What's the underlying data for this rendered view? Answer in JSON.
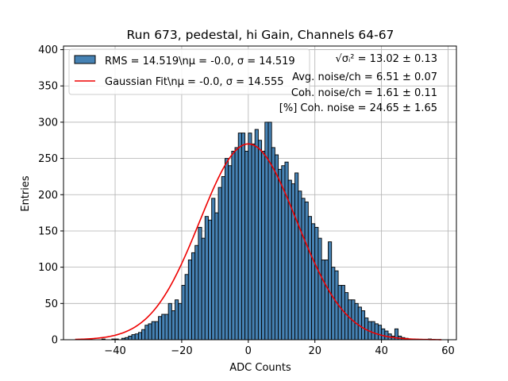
{
  "chart_data": {
    "type": "bar",
    "title": "Run 673, pedestal, hi Gain, Channels 64-67",
    "xlabel": "ADC Counts",
    "ylabel": "Entries",
    "xlim": [
      -55.5,
      62.5
    ],
    "ylim": [
      0,
      405
    ],
    "grid": true,
    "xticks": [
      -40,
      -20,
      0,
      20,
      40,
      60
    ],
    "yticks": [
      0,
      50,
      100,
      150,
      200,
      250,
      300,
      350,
      400
    ],
    "bin_start": -52,
    "bin_width": 1,
    "histogram_values": [
      0,
      0,
      0,
      0,
      0,
      0,
      0,
      0,
      1,
      0,
      0,
      1,
      1,
      0,
      2,
      3,
      5,
      7,
      8,
      10,
      14,
      20,
      22,
      25,
      25,
      32,
      35,
      35,
      50,
      40,
      55,
      50,
      75,
      90,
      110,
      120,
      130,
      155,
      140,
      170,
      165,
      195,
      175,
      210,
      225,
      250,
      240,
      260,
      265,
      285,
      285,
      260,
      285,
      270,
      290,
      275,
      260,
      300,
      300,
      265,
      255,
      235,
      240,
      245,
      220,
      215,
      230,
      205,
      195,
      190,
      170,
      160,
      155,
      140,
      110,
      110,
      135,
      100,
      95,
      75,
      75,
      65,
      55,
      55,
      50,
      45,
      40,
      30,
      25,
      25,
      22,
      20,
      15,
      12,
      8,
      5,
      15,
      5,
      3,
      2,
      1,
      1,
      0,
      0,
      0,
      0,
      1,
      0,
      0,
      0,
      0
    ],
    "fit": {
      "mu": 0,
      "sigma": 14.555,
      "amplitude": 270
    },
    "fit_range": [
      -52,
      58
    ],
    "bar_color": "#4682b4",
    "bar_edge_color": "#000000",
    "fit_color": "#ee0000",
    "legend_position": "upper-left",
    "legend": [
      {
        "label": "RMS = 14.519\\nμ = -0.0, σ = 14.519",
        "kind": "patch"
      },
      {
        "label": "Gaussian Fit\\nμ = -0.0, σ = 14.555",
        "kind": "line"
      }
    ],
    "annotations": [
      "√σᵢ² = 13.02 ± 0.13",
      "Avg. noise/ch = 6.51 ± 0.07",
      "Coh. noise/ch = 1.61 ± 0.11",
      "[%] Coh. noise = 24.65 ± 1.65"
    ]
  }
}
